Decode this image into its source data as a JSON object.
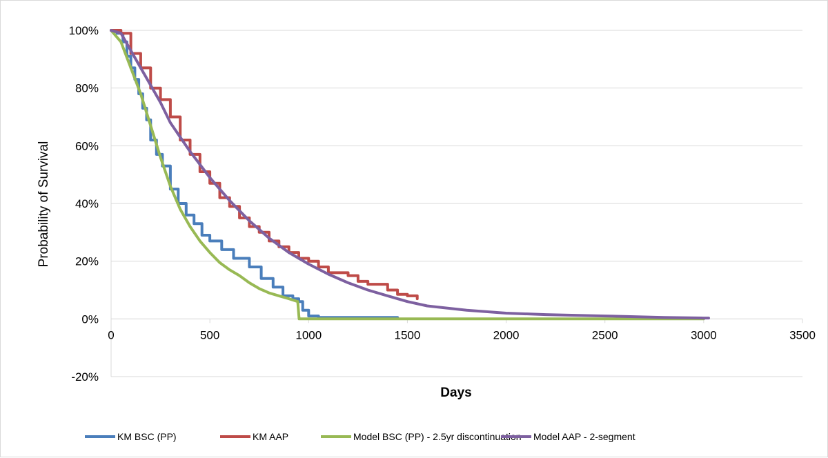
{
  "chart_data": {
    "type": "line",
    "xlabel": "Days",
    "ylabel": "Probability of Survival",
    "xlim": [
      0,
      3500
    ],
    "ylim": [
      -20,
      100
    ],
    "x_ticks": [
      0,
      500,
      1000,
      1500,
      2000,
      2500,
      3000,
      3500
    ],
    "x_tick_labels": [
      "0",
      "500",
      "1000",
      "1500",
      "2000",
      "2500",
      "3000",
      "3500"
    ],
    "y_ticks": [
      -20,
      0,
      20,
      40,
      60,
      80,
      100
    ],
    "y_tick_labels": [
      "-20%",
      "0%",
      "20%",
      "40%",
      "60%",
      "80%",
      "100%"
    ],
    "grid": "horizontal",
    "legend_position": "bottom",
    "series": [
      {
        "name": "KM BSC (PP)",
        "color": "#4a7ebb",
        "step": true,
        "points": [
          [
            0,
            100
          ],
          [
            30,
            99
          ],
          [
            60,
            96
          ],
          [
            80,
            91
          ],
          [
            100,
            87
          ],
          [
            120,
            83
          ],
          [
            140,
            78
          ],
          [
            160,
            73
          ],
          [
            180,
            69
          ],
          [
            200,
            62
          ],
          [
            230,
            57
          ],
          [
            260,
            53
          ],
          [
            300,
            45
          ],
          [
            340,
            40
          ],
          [
            380,
            36
          ],
          [
            420,
            33
          ],
          [
            460,
            29
          ],
          [
            500,
            27
          ],
          [
            560,
            24
          ],
          [
            620,
            21
          ],
          [
            700,
            18
          ],
          [
            760,
            14
          ],
          [
            820,
            11
          ],
          [
            870,
            8
          ],
          [
            920,
            7
          ],
          [
            950,
            6
          ],
          [
            970,
            3
          ],
          [
            1000,
            1
          ],
          [
            1050,
            0.5
          ],
          [
            1450,
            0.5
          ]
        ]
      },
      {
        "name": "KM AAP",
        "color": "#be4b48",
        "step": true,
        "points": [
          [
            0,
            100
          ],
          [
            50,
            99
          ],
          [
            100,
            92
          ],
          [
            150,
            87
          ],
          [
            200,
            80
          ],
          [
            250,
            76
          ],
          [
            300,
            70
          ],
          [
            350,
            62
          ],
          [
            400,
            57
          ],
          [
            450,
            51
          ],
          [
            500,
            47
          ],
          [
            550,
            42
          ],
          [
            600,
            39
          ],
          [
            650,
            35
          ],
          [
            700,
            32
          ],
          [
            750,
            30
          ],
          [
            800,
            27
          ],
          [
            850,
            25
          ],
          [
            900,
            23
          ],
          [
            950,
            21
          ],
          [
            1000,
            20
          ],
          [
            1050,
            18
          ],
          [
            1100,
            16
          ],
          [
            1200,
            15
          ],
          [
            1250,
            13
          ],
          [
            1300,
            12
          ],
          [
            1350,
            12
          ],
          [
            1400,
            10
          ],
          [
            1450,
            8.5
          ],
          [
            1500,
            8
          ],
          [
            1550,
            7
          ]
        ]
      },
      {
        "name": "Model BSC (PP) - 2.5yr discontinuation",
        "color": "#98b954",
        "step": false,
        "points": [
          [
            0,
            100
          ],
          [
            50,
            96
          ],
          [
            100,
            87
          ],
          [
            150,
            78
          ],
          [
            200,
            67
          ],
          [
            250,
            56
          ],
          [
            300,
            46
          ],
          [
            350,
            38
          ],
          [
            400,
            32
          ],
          [
            450,
            27
          ],
          [
            500,
            23
          ],
          [
            550,
            19.5
          ],
          [
            600,
            17
          ],
          [
            650,
            15
          ],
          [
            700,
            12.5
          ],
          [
            750,
            10.5
          ],
          [
            800,
            9
          ],
          [
            850,
            8
          ],
          [
            900,
            7
          ],
          [
            945,
            6
          ],
          [
            952,
            0
          ],
          [
            1500,
            0
          ],
          [
            2000,
            0
          ],
          [
            3000,
            0
          ]
        ]
      },
      {
        "name": "Model AAP - 2-segment",
        "color": "#7d60a0",
        "step": false,
        "points": [
          [
            0,
            100
          ],
          [
            50,
            99
          ],
          [
            100,
            93
          ],
          [
            150,
            87
          ],
          [
            200,
            81
          ],
          [
            250,
            75
          ],
          [
            300,
            68
          ],
          [
            400,
            58
          ],
          [
            500,
            49
          ],
          [
            600,
            41
          ],
          [
            700,
            34
          ],
          [
            800,
            28
          ],
          [
            900,
            23
          ],
          [
            1000,
            19
          ],
          [
            1100,
            15.5
          ],
          [
            1200,
            12.5
          ],
          [
            1300,
            10
          ],
          [
            1400,
            8
          ],
          [
            1500,
            6
          ],
          [
            1600,
            4.5
          ],
          [
            1800,
            3
          ],
          [
            2000,
            2
          ],
          [
            2200,
            1.5
          ],
          [
            2500,
            1
          ],
          [
            2800,
            0.5
          ],
          [
            3000,
            0.3
          ],
          [
            3025,
            0.3
          ]
        ]
      }
    ]
  }
}
